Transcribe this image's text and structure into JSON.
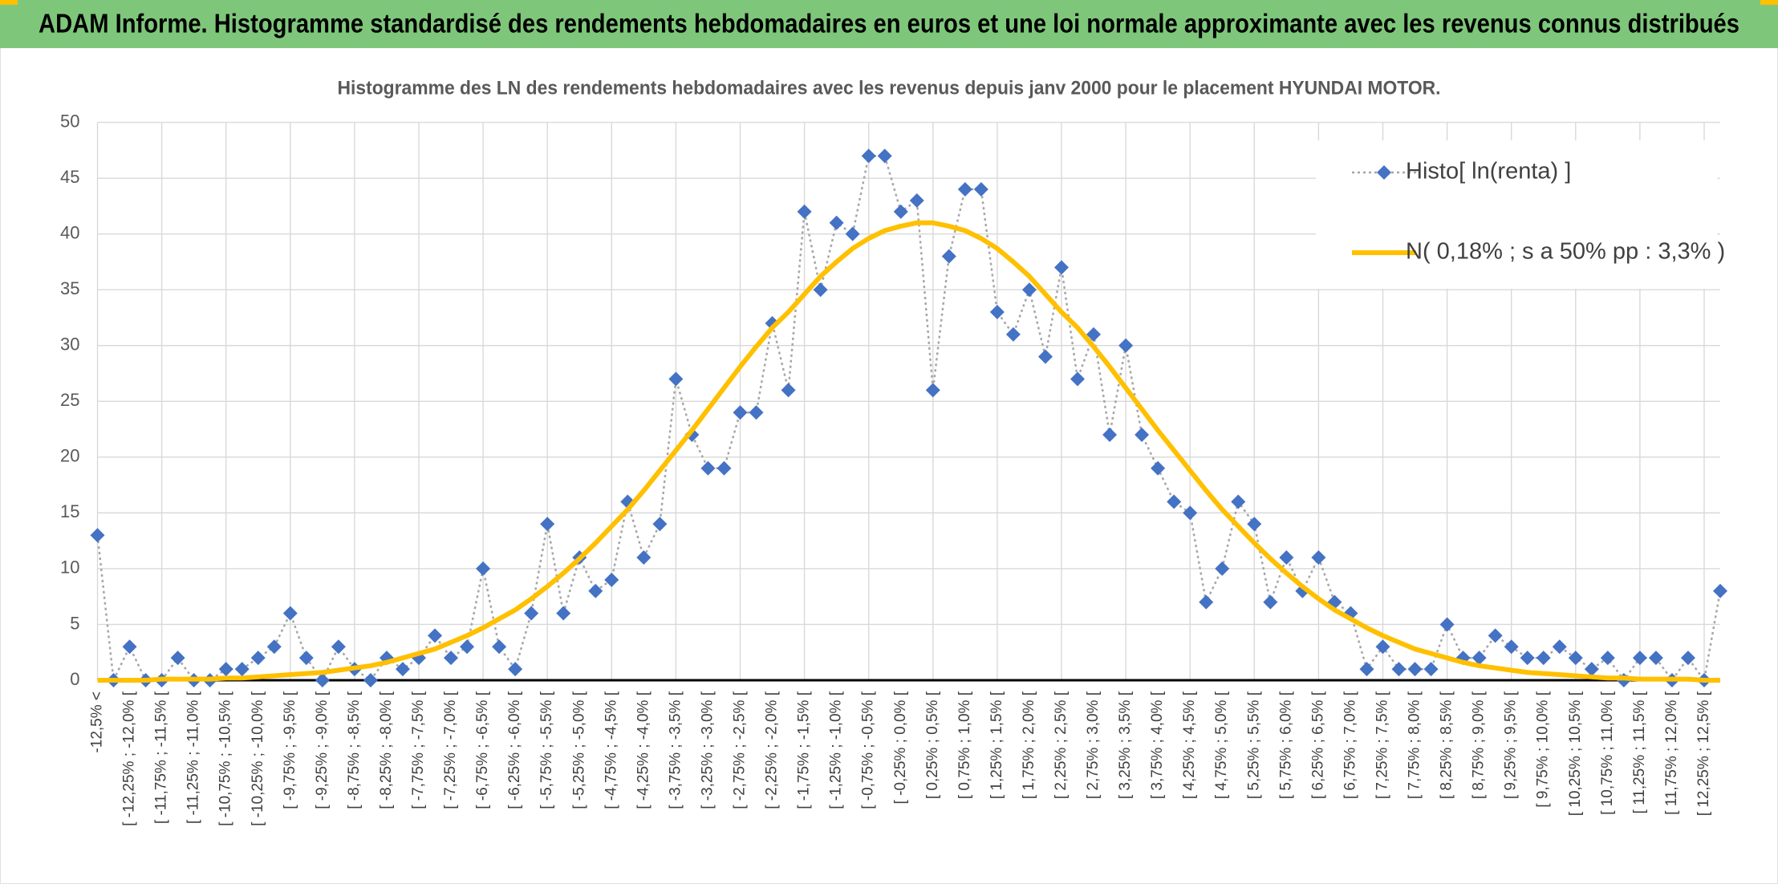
{
  "header": {
    "title": "ADAM Informe. Histogramme standardisé des rendements hebdomadaires en euros et une loi normale approximante avec les revenus connus distribués"
  },
  "chart_data": {
    "type": "line",
    "title": "Histogramme des LN des rendements hebdomadaires avec les revenus depuis janv 2000 pour le placement HYUNDAI MOTOR.",
    "categories": [
      "-12,5% <",
      null,
      "[ -12,25% ; -12,0% [",
      null,
      "[ -11,75% ; -11,5% [",
      null,
      "[ -11,25% ; -11,0% [",
      null,
      "[ -10,75% ; -10,5% [",
      null,
      "[ -10,25% ; -10,0% [",
      null,
      "[ -9,75% ; -9,5% [",
      null,
      "[ -9,25% ; -9,0% [",
      null,
      "[ -8,75% ; -8,5% [",
      null,
      "[ -8,25% ; -8,0% [",
      null,
      "[ -7,75% ; -7,5% [",
      null,
      "[ -7,25% ; -7,0% [",
      null,
      "[ -6,75% ; -6,5% [",
      null,
      "[ -6,25% ; -6,0% [",
      null,
      "[ -5,75% ; -5,5% [",
      null,
      "[ -5,25% ; -5,0% [",
      null,
      "[ -4,75% ; -4,5% [",
      null,
      "[ -4,25% ; -4,0% [",
      null,
      "[ -3,75% ; -3,5% [",
      null,
      "[ -3,25% ; -3,0% [",
      null,
      "[ -2,75% ; -2,5% [",
      null,
      "[ -2,25% ; -2,0% [",
      null,
      "[ -1,75% ; -1,5% [",
      null,
      "[ -1,25% ; -1,0% [",
      null,
      "[ -0,75% ; -0,5% [",
      null,
      "[ -0,25% ; 0,0% [",
      null,
      "[ 0,25% ; 0,5% [",
      null,
      "[ 0,75% ; 1,0% [",
      null,
      "[ 1,25% ; 1,5% [",
      null,
      "[ 1,75% ; 2,0% [",
      null,
      "[ 2,25% ; 2,5% [",
      null,
      "[ 2,75% ; 3,0% [",
      null,
      "[ 3,25% ; 3,5% [",
      null,
      "[ 3,75% ; 4,0% [",
      null,
      "[ 4,25% ; 4,5% [",
      null,
      "[ 4,75% ; 5,0% [",
      null,
      "[ 5,25% ; 5,5% [",
      null,
      "[ 5,75% ; 6,0% [",
      null,
      "[ 6,25% ; 6,5% [",
      null,
      "[ 6,75% ; 7,0% [",
      null,
      "[ 7,25% ; 7,5% [",
      null,
      "[ 7,75% ; 8,0% [",
      null,
      "[ 8,25% ; 8,5% [",
      null,
      "[ 8,75% ; 9,0% [",
      null,
      "[ 9,25% ; 9,5% [",
      null,
      "[ 9,75% ; 10,0% [",
      null,
      "[ 10,25% ; 10,5% [",
      null,
      "[ 10,75% ; 11,0% [",
      null,
      "[ 11,25% ; 11,5% [",
      null,
      "[ 11,75% ; 12,0% [",
      null,
      "[ 12,25% ; 12,5% [",
      null
    ],
    "series": [
      {
        "name": "Histo[ ln(renta) ]",
        "color": "#4472c4",
        "line_color": "#a6a6a6",
        "marker": "diamond",
        "values": [
          13,
          0,
          3,
          0,
          0,
          2,
          0,
          0,
          1,
          1,
          2,
          3,
          6,
          2,
          0,
          3,
          1,
          0,
          2,
          1,
          2,
          4,
          2,
          3,
          10,
          3,
          1,
          6,
          14,
          6,
          11,
          8,
          9,
          16,
          11,
          14,
          27,
          22,
          19,
          19,
          24,
          24,
          32,
          26,
          42,
          35,
          41,
          40,
          47,
          47,
          42,
          43,
          26,
          38,
          44,
          44,
          33,
          31,
          35,
          29,
          37,
          27,
          31,
          22,
          30,
          22,
          19,
          16,
          15,
          7,
          10,
          16,
          14,
          7,
          11,
          8,
          11,
          7,
          6,
          1,
          3,
          1,
          1,
          1,
          5,
          2,
          2,
          4,
          3,
          2,
          2,
          3,
          2,
          1,
          2,
          0,
          2,
          2,
          0,
          2,
          0,
          8
        ]
      },
      {
        "name": "N( 0,18% ; s a 50% pp : 3,3% )",
        "color": "#ffc000",
        "marker": "none",
        "values": [
          0,
          0,
          0,
          0,
          0.1,
          0.1,
          0.1,
          0.1,
          0.2,
          0.2,
          0.3,
          0.4,
          0.5,
          0.6,
          0.7,
          0.9,
          1.1,
          1.3,
          1.6,
          2.0,
          2.4,
          2.8,
          3.4,
          4.0,
          4.7,
          5.5,
          6.3,
          7.3,
          8.4,
          9.6,
          10.9,
          12.3,
          13.8,
          15.3,
          17.0,
          18.8,
          20.6,
          22.4,
          24.3,
          26.2,
          28.1,
          29.9,
          31.6,
          33.0,
          34.6,
          36.2,
          37.5,
          38.7,
          39.6,
          40.3,
          40.7,
          41.0,
          41.0,
          40.7,
          40.3,
          39.6,
          38.7,
          37.5,
          36.2,
          34.6,
          33.0,
          31.6,
          29.9,
          28.1,
          26.2,
          24.3,
          22.4,
          20.6,
          18.8,
          17.0,
          15.3,
          13.8,
          12.3,
          10.9,
          9.6,
          8.4,
          7.3,
          6.3,
          5.5,
          4.7,
          4.0,
          3.4,
          2.8,
          2.4,
          2.0,
          1.6,
          1.3,
          1.1,
          0.9,
          0.7,
          0.6,
          0.5,
          0.4,
          0.3,
          0.2,
          0.2,
          0.1,
          0.1,
          0.1,
          0.1,
          0,
          0
        ]
      }
    ],
    "ylim": [
      0,
      50
    ],
    "yticks": [
      0,
      5,
      10,
      15,
      20,
      25,
      30,
      35,
      40,
      45,
      50
    ],
    "grid": true,
    "legend": "top-right"
  }
}
